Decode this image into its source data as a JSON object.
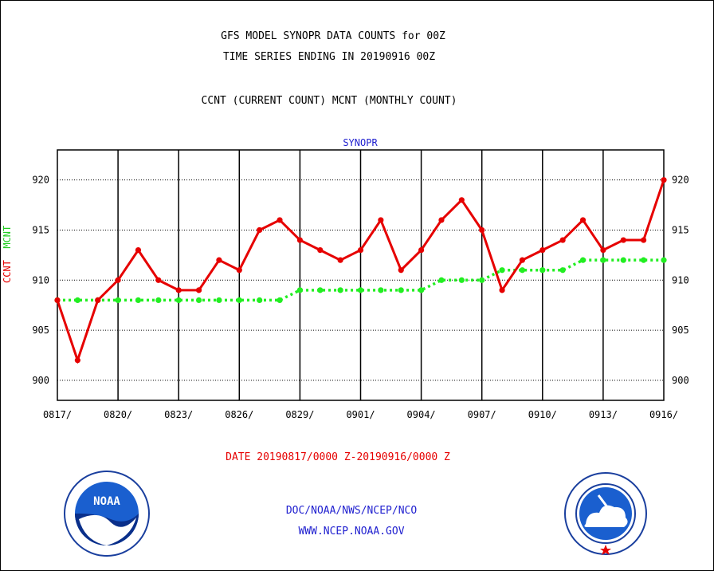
{
  "title_line1": "GFS MODEL SYNOPR DATA COUNTS for 00Z",
  "title_line2": "TIME SERIES ENDING IN 20190916 00Z",
  "subtitle": "CCNT (CURRENT COUNT) MCNT (MONTHLY COUNT)",
  "series_label": "SYNOPR",
  "ylabel_ccnt": "CCNT",
  "ylabel_mcnt": "MCNT",
  "date_range": "DATE 20190817/0000 Z-20190916/0000 Z",
  "footer_line1": "DOC/NOAA/NWS/NCEP/NCO",
  "footer_line2": "WWW.NCEP.NOAA.GOV",
  "logos": {
    "left": "NOAA",
    "right": "National Weather Service"
  },
  "colors": {
    "ccnt": "#e60000",
    "mcnt": "#22ee22",
    "footer": "#1f1fcf"
  },
  "chart_data": {
    "type": "line",
    "x": [
      "0817",
      "0818",
      "0819",
      "0820",
      "0821",
      "0822",
      "0823",
      "0824",
      "0825",
      "0826",
      "0827",
      "0828",
      "0829",
      "0830",
      "0831",
      "0901",
      "0902",
      "0903",
      "0904",
      "0905",
      "0906",
      "0907",
      "0908",
      "0909",
      "0910",
      "0911",
      "0912",
      "0913",
      "0914",
      "0915",
      "0916"
    ],
    "x_tick_labels": [
      "0817/",
      "0820/",
      "0823/",
      "0826/",
      "0829/",
      "0901/",
      "0904/",
      "0907/",
      "0910/",
      "0913/",
      "0916/"
    ],
    "y_ticks": [
      900,
      905,
      910,
      915,
      920
    ],
    "ylim": [
      898,
      923
    ],
    "grid": true,
    "series": [
      {
        "name": "CCNT",
        "values": [
          908,
          902,
          908,
          910,
          913,
          910,
          909,
          909,
          912,
          911,
          915,
          916,
          914,
          913,
          912,
          913,
          916,
          911,
          913,
          916,
          918,
          915,
          909,
          912,
          913,
          914,
          916,
          913,
          914,
          914,
          920
        ]
      },
      {
        "name": "MCNT",
        "values": [
          908,
          908,
          908,
          908,
          908,
          908,
          908,
          908,
          908,
          908,
          908,
          908,
          909,
          909,
          909,
          909,
          909,
          909,
          909,
          910,
          910,
          910,
          911,
          911,
          911,
          911,
          912,
          912,
          912,
          912,
          912
        ]
      }
    ]
  }
}
